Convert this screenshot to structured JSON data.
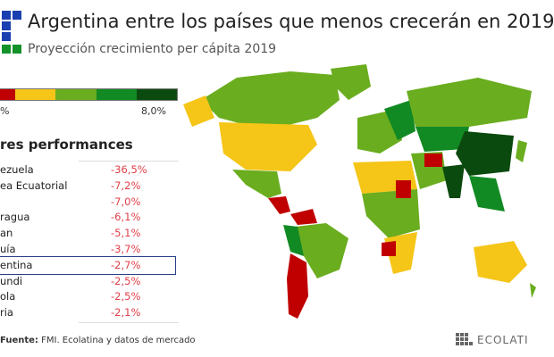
{
  "header": {
    "title": "Argentina entre los países que menos crecerán en 2019",
    "subtitle": "Proyección crecimiento per cápita 2019"
  },
  "legend": {
    "min_label": "%",
    "max_label": "8,0%",
    "colors": [
      "#c00000",
      "#f5c518",
      "#6aad1f",
      "#128a23",
      "#0b4a0e"
    ]
  },
  "table": {
    "title": "res performances",
    "rows": [
      {
        "name": "ezuela",
        "value": "-36,5%"
      },
      {
        "name": "ea Ecuatorial",
        "value": "-7,2%"
      },
      {
        "name": "",
        "value": "-7,0%"
      },
      {
        "name": "ragua",
        "value": "-6,1%"
      },
      {
        "name": "an",
        "value": "-5,1%"
      },
      {
        "name": "uía",
        "value": "-3,7%"
      },
      {
        "name": "entina",
        "value": "-2,7%",
        "highlighted": true
      },
      {
        "name": "undi",
        "value": "-2,5%"
      },
      {
        "name": "ola",
        "value": "-2,5%"
      },
      {
        "name": "ria",
        "value": "-2,1%"
      }
    ]
  },
  "source": {
    "label": "Fuente:",
    "text": "FMI. Ecolatina y datos de mercado"
  },
  "brand": {
    "name": "ECOLATI"
  }
}
